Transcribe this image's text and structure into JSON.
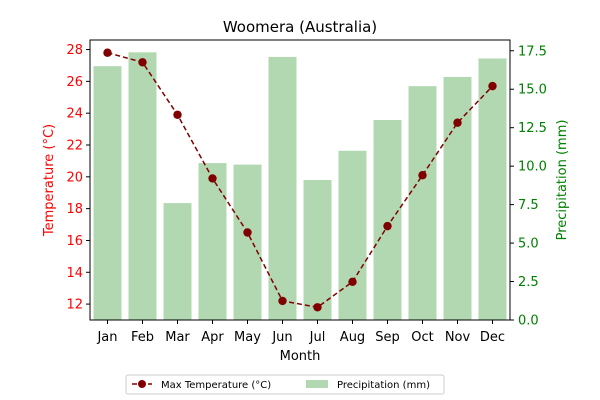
{
  "chart_data": {
    "type": "bar+line",
    "title": "Woomera (Australia)",
    "xlabel": "Month",
    "categories": [
      "Jan",
      "Feb",
      "Mar",
      "Apr",
      "May",
      "Jun",
      "Jul",
      "Aug",
      "Sep",
      "Oct",
      "Nov",
      "Dec"
    ],
    "left_axis": {
      "label": "Temperature (°C)",
      "ylim": [
        11.0,
        28.6
      ],
      "ticks": [
        "12",
        "14",
        "16",
        "18",
        "20",
        "22",
        "24",
        "26",
        "28"
      ],
      "tick_values": [
        12,
        14,
        16,
        18,
        20,
        22,
        24,
        26,
        28
      ],
      "color": "#ff0000"
    },
    "right_axis": {
      "label": "Precipitation (mm)",
      "ylim": [
        0,
        18.2
      ],
      "ticks": [
        "0.0",
        "2.5",
        "5.0",
        "7.5",
        "10.0",
        "12.5",
        "15.0",
        "17.5"
      ],
      "tick_values": [
        0,
        2.5,
        5.0,
        7.5,
        10.0,
        12.5,
        15.0,
        17.5
      ],
      "color": "#008000"
    },
    "series": [
      {
        "name": "Max Temperature (°C)",
        "kind": "line",
        "axis": "left",
        "style": "dashed",
        "color": "#800000",
        "values": [
          27.8,
          27.2,
          23.9,
          19.9,
          16.5,
          12.2,
          11.8,
          13.4,
          16.9,
          20.1,
          23.4,
          25.7
        ]
      },
      {
        "name": "Precipitation (mm)",
        "kind": "bar",
        "axis": "right",
        "color": "#b2d8b2",
        "values": [
          16.5,
          17.4,
          7.6,
          10.2,
          10.1,
          17.1,
          9.1,
          11.0,
          13.0,
          15.2,
          15.8,
          17.0
        ]
      }
    ],
    "legend": {
      "placement": "bottom-center",
      "entries": [
        "Max Temperature (°C)",
        "Precipitation (mm)"
      ]
    },
    "grid": false
  }
}
